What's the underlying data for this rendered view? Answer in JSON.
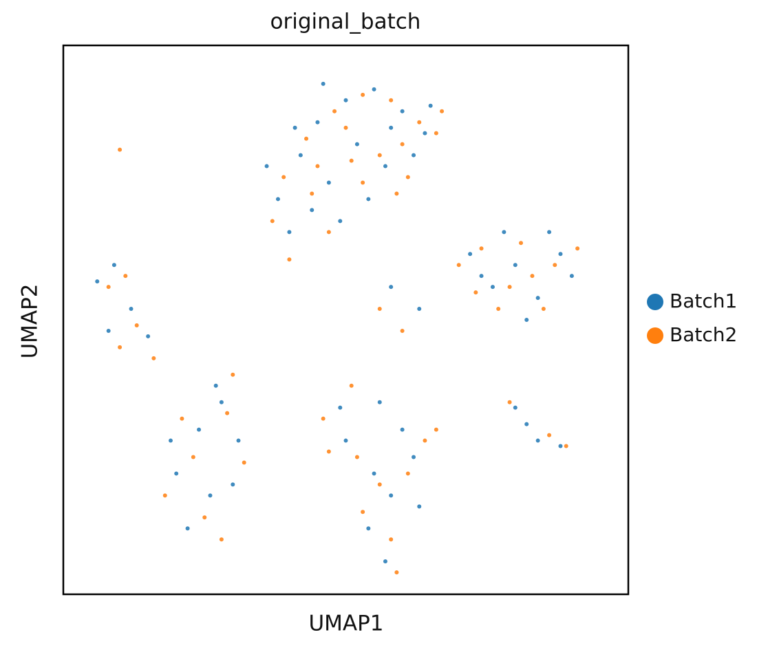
{
  "chart_data": {
    "type": "scatter",
    "title": "original_batch",
    "x_label": "UMAP1",
    "y_label": "UMAP2",
    "xlim": [
      0,
      100
    ],
    "ylim": [
      0,
      100
    ],
    "legend": "right",
    "series": [
      {
        "name": "Batch1",
        "color": "#1f77b4",
        "x": [
          38,
          42,
          45,
          50,
          55,
          60,
          64,
          40,
          47,
          52,
          57,
          62,
          44,
          49,
          36,
          54,
          58,
          46,
          65,
          41,
          72,
          76,
          80,
          84,
          88,
          90,
          78,
          86,
          82,
          74,
          6,
          9,
          12,
          15,
          8,
          20,
          24,
          28,
          31,
          26,
          22,
          30,
          27,
          19,
          50,
          55,
          58,
          62,
          54,
          57,
          60,
          49,
          63,
          56,
          80,
          84,
          88,
          82,
          58,
          63
        ],
        "values": [
          72,
          80,
          86,
          90,
          92,
          88,
          84,
          66,
          75,
          82,
          78,
          80,
          70,
          68,
          78,
          72,
          85,
          93,
          89,
          85,
          62,
          56,
          60,
          54,
          62,
          58,
          66,
          66,
          50,
          58,
          57,
          60,
          52,
          47,
          48,
          22,
          30,
          35,
          28,
          18,
          12,
          20,
          38,
          28,
          28,
          22,
          18,
          25,
          12,
          6,
          30,
          34,
          16,
          35,
          34,
          28,
          27,
          31,
          56,
          52
        ]
      },
      {
        "name": "Batch2",
        "color": "#ff7f0e",
        "x": [
          39,
          43,
          48,
          53,
          58,
          63,
          67,
          44,
          51,
          56,
          60,
          37,
          47,
          53,
          61,
          40,
          50,
          66,
          45,
          59,
          70,
          74,
          79,
          83,
          87,
          91,
          77,
          85,
          81,
          73,
          8,
          11,
          13,
          10,
          16,
          18,
          23,
          29,
          32,
          25,
          21,
          28,
          30,
          46,
          52,
          56,
          61,
          53,
          59,
          64,
          47,
          58,
          51,
          66,
          79,
          86,
          89,
          56,
          60,
          10
        ],
        "values": [
          76,
          83,
          88,
          91,
          90,
          86,
          88,
          73,
          79,
          80,
          82,
          68,
          66,
          75,
          76,
          61,
          85,
          84,
          78,
          73,
          60,
          63,
          56,
          58,
          60,
          63,
          52,
          52,
          64,
          55,
          56,
          58,
          49,
          45,
          43,
          18,
          25,
          33,
          24,
          14,
          32,
          10,
          40,
          32,
          25,
          20,
          22,
          15,
          4,
          28,
          26,
          10,
          38,
          30,
          35,
          29,
          27,
          52,
          48,
          81
        ]
      }
    ]
  }
}
